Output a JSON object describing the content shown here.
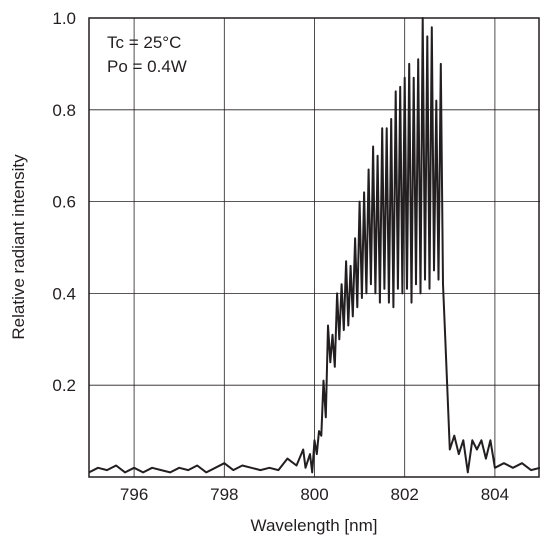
{
  "chart_data": {
    "type": "line",
    "title": "",
    "xlabel": "Wavelength [nm]",
    "ylabel": "Relative radiant intensity",
    "xlim": [
      795,
      805
    ],
    "ylim": [
      0,
      1.0
    ],
    "x_ticks": [
      796,
      798,
      800,
      802,
      804
    ],
    "x_tick_labels": [
      "796",
      "798",
      "800",
      "802",
      "804"
    ],
    "y_ticks": [
      0.2,
      0.4,
      0.6,
      0.8,
      1.0
    ],
    "y_tick_labels": [
      "0.2",
      "0.4",
      "0.6",
      "0.8",
      "1.0"
    ],
    "grid": true,
    "annotations": [
      "Tc = 25°C",
      "Po = 0.4W"
    ],
    "series": [
      {
        "color": "#231f20",
        "x": [
          795.0,
          795.2,
          795.4,
          795.6,
          795.8,
          796.0,
          796.2,
          796.4,
          796.6,
          796.8,
          797.0,
          797.2,
          797.4,
          797.6,
          797.8,
          798.0,
          798.2,
          798.4,
          798.6,
          798.8,
          799.0,
          799.2,
          799.4,
          799.6,
          799.75,
          799.8,
          799.9,
          799.95,
          800.0,
          800.05,
          800.1,
          800.15,
          800.2,
          800.25,
          800.3,
          800.35,
          800.4,
          800.45,
          800.5,
          800.55,
          800.6,
          800.65,
          800.7,
          800.75,
          800.8,
          800.85,
          800.9,
          800.95,
          801.0,
          801.05,
          801.1,
          801.15,
          801.2,
          801.25,
          801.3,
          801.35,
          801.4,
          801.45,
          801.5,
          801.55,
          801.6,
          801.65,
          801.7,
          801.75,
          801.8,
          801.85,
          801.9,
          801.95,
          802.0,
          802.05,
          802.1,
          802.15,
          802.2,
          802.25,
          802.3,
          802.35,
          802.4,
          802.45,
          802.5,
          802.55,
          802.6,
          802.65,
          802.7,
          802.75,
          802.8,
          802.85,
          802.9,
          803.0,
          803.1,
          803.2,
          803.3,
          803.4,
          803.5,
          803.6,
          803.7,
          803.8,
          803.9,
          804.0,
          804.2,
          804.4,
          804.6,
          804.8,
          805.0
        ],
        "y": [
          0.01,
          0.02,
          0.015,
          0.025,
          0.01,
          0.02,
          0.01,
          0.02,
          0.015,
          0.01,
          0.02,
          0.015,
          0.025,
          0.01,
          0.02,
          0.03,
          0.015,
          0.025,
          0.02,
          0.015,
          0.02,
          0.015,
          0.04,
          0.025,
          0.06,
          0.02,
          0.05,
          0.01,
          0.08,
          0.05,
          0.1,
          0.09,
          0.21,
          0.13,
          0.33,
          0.25,
          0.31,
          0.24,
          0.4,
          0.3,
          0.42,
          0.32,
          0.47,
          0.33,
          0.46,
          0.35,
          0.52,
          0.37,
          0.6,
          0.39,
          0.62,
          0.4,
          0.67,
          0.42,
          0.72,
          0.4,
          0.7,
          0.38,
          0.76,
          0.41,
          0.76,
          0.38,
          0.78,
          0.37,
          0.84,
          0.41,
          0.85,
          0.4,
          0.87,
          0.41,
          0.9,
          0.38,
          0.87,
          0.42,
          0.91,
          0.4,
          1.0,
          0.43,
          0.96,
          0.41,
          0.98,
          0.45,
          0.82,
          0.43,
          0.9,
          0.42,
          0.3,
          0.06,
          0.09,
          0.05,
          0.08,
          0.01,
          0.08,
          0.06,
          0.08,
          0.04,
          0.08,
          0.02,
          0.03,
          0.02,
          0.03,
          0.015,
          0.02
        ]
      }
    ]
  }
}
